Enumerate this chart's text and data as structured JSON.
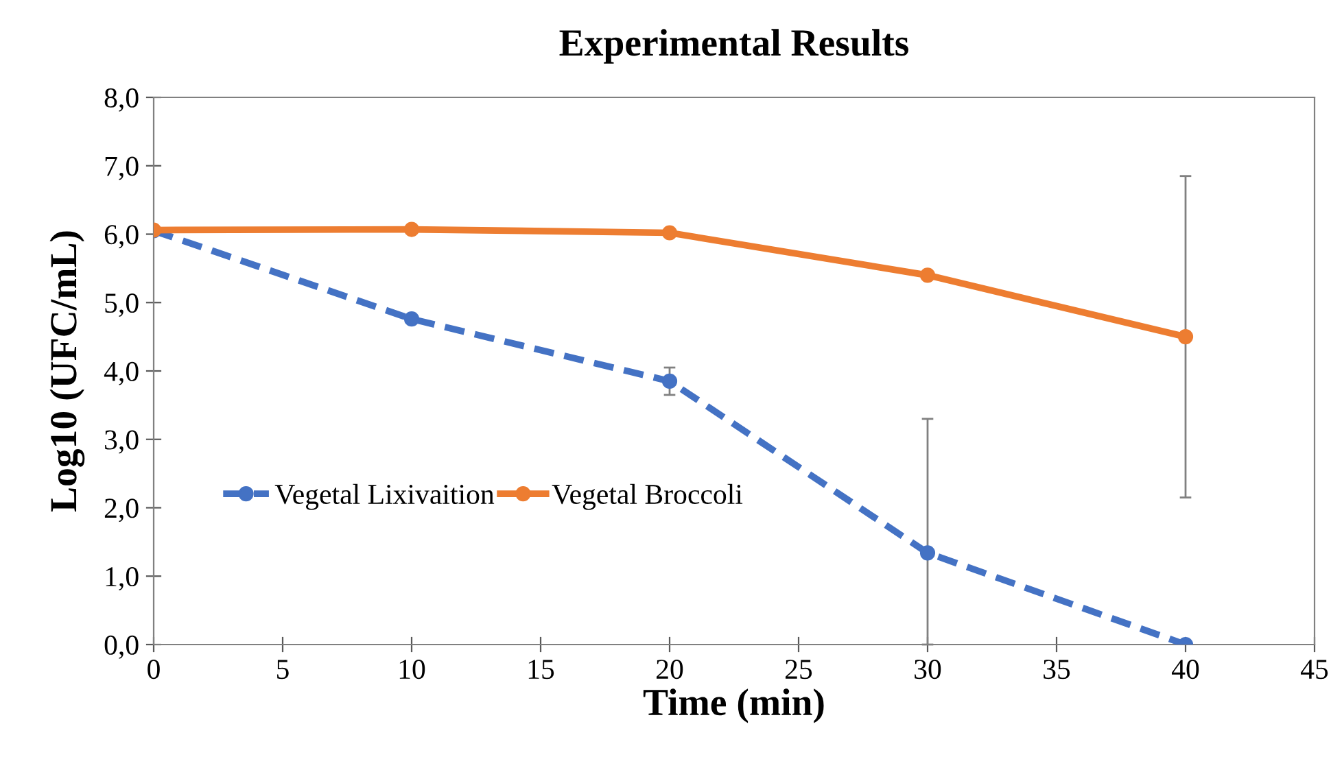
{
  "chart_data": {
    "type": "line",
    "title": "Experimental Results",
    "xlabel": "Time (min)",
    "ylabel": "Log10 (UFC/mL)",
    "x": [
      0,
      10,
      20,
      30,
      40
    ],
    "series": [
      {
        "name": "Vegetal Lixivaition",
        "color": "#4472c4",
        "values": [
          6.05,
          4.76,
          3.85,
          1.34,
          0.0
        ],
        "line_style": "dashed",
        "errors": [
          null,
          null,
          [
            3.65,
            4.05
          ],
          [
            0,
            3.3
          ],
          null
        ]
      },
      {
        "name": "Vegetal Broccoli",
        "color": "#ed7d31",
        "values": [
          6.06,
          6.07,
          6.02,
          5.4,
          4.5
        ],
        "line_style": "solid",
        "errors": [
          null,
          null,
          null,
          null,
          [
            2.15,
            6.85
          ]
        ]
      }
    ],
    "xlim": [
      0,
      45
    ],
    "xticks": [
      0,
      5,
      10,
      15,
      20,
      25,
      30,
      35,
      40,
      45
    ],
    "ylim": [
      0,
      8
    ],
    "yticks": [
      {
        "value": 0,
        "label": "0,0"
      },
      {
        "value": 1,
        "label": "1,0"
      },
      {
        "value": 2,
        "label": "2,0"
      },
      {
        "value": 3,
        "label": "3,0"
      },
      {
        "value": 4,
        "label": "4,0"
      },
      {
        "value": 5,
        "label": "5,0"
      },
      {
        "value": 6,
        "label": "6,0"
      },
      {
        "value": 7,
        "label": "7,0"
      },
      {
        "value": 8,
        "label": "8,0"
      }
    ],
    "marker": "circle",
    "grid": false,
    "legend": "center left"
  }
}
